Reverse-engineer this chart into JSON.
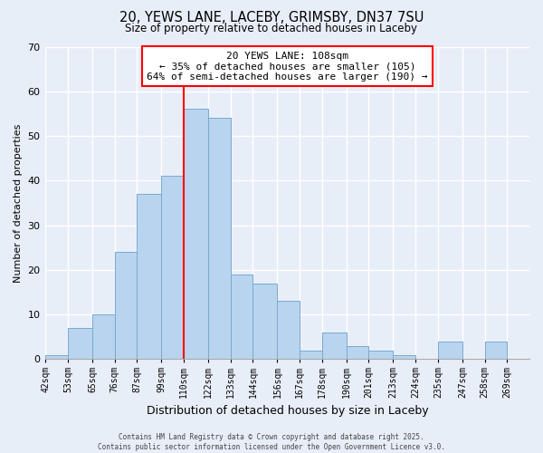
{
  "title": "20, YEWS LANE, LACEBY, GRIMSBY, DN37 7SU",
  "subtitle": "Size of property relative to detached houses in Laceby",
  "xlabel": "Distribution of detached houses by size in Laceby",
  "ylabel": "Number of detached properties",
  "bar_color": "#b8d4ee",
  "bar_edge_color": "#7aaad0",
  "background_color": "#e8eef8",
  "grid_color": "white",
  "bin_labels": [
    "42sqm",
    "53sqm",
    "65sqm",
    "76sqm",
    "87sqm",
    "99sqm",
    "110sqm",
    "122sqm",
    "133sqm",
    "144sqm",
    "156sqm",
    "167sqm",
    "178sqm",
    "190sqm",
    "201sqm",
    "213sqm",
    "224sqm",
    "235sqm",
    "247sqm",
    "258sqm",
    "269sqm"
  ],
  "bin_edges": [
    42,
    53,
    65,
    76,
    87,
    99,
    110,
    122,
    133,
    144,
    156,
    167,
    178,
    190,
    201,
    213,
    224,
    235,
    247,
    258,
    269
  ],
  "bar_heights": [
    1,
    7,
    10,
    24,
    37,
    41,
    56,
    54,
    19,
    17,
    13,
    2,
    6,
    3,
    2,
    1,
    0,
    4,
    0,
    4
  ],
  "ylim": [
    0,
    70
  ],
  "yticks": [
    0,
    10,
    20,
    30,
    40,
    50,
    60,
    70
  ],
  "property_line_x": 110,
  "annotation_line1": "20 YEWS LANE: 108sqm",
  "annotation_line2": "← 35% of detached houses are smaller (105)",
  "annotation_line3": "64% of semi-detached houses are larger (190) →",
  "annotation_box_color": "white",
  "annotation_box_edge_color": "red",
  "property_line_color": "red",
  "footer_line1": "Contains HM Land Registry data © Crown copyright and database right 2025.",
  "footer_line2": "Contains public sector information licensed under the Open Government Licence v3.0."
}
